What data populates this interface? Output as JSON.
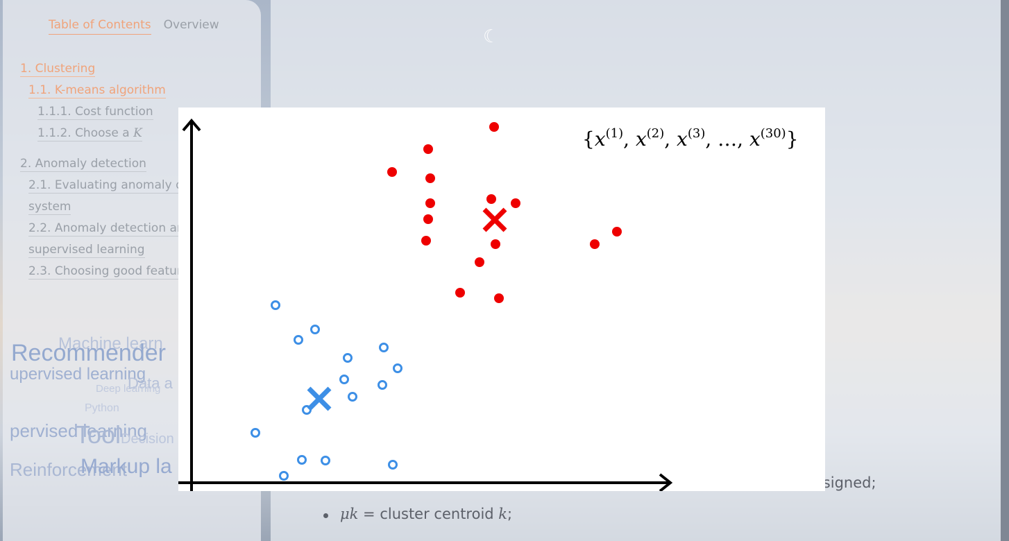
{
  "sidebar": {
    "tabs": [
      {
        "label": "Table of Contents",
        "active": true
      },
      {
        "label": "Overview",
        "active": false
      }
    ],
    "toc": [
      {
        "label": "1. Clustering",
        "level": 1,
        "active": true
      },
      {
        "label": "1.1. K-means algorithm",
        "level": 2,
        "active": true
      },
      {
        "label": "1.1.1. Cost function",
        "level": 3,
        "active": false
      },
      {
        "label": "1.1.2. Choose a ",
        "math": "K",
        "level": 3,
        "active": false
      },
      {
        "label": "2. Anomaly detection",
        "level": 1,
        "active": false
      },
      {
        "label": "2.1. Evaluating anomaly de",
        "cont": "system",
        "level": 2,
        "active": false
      },
      {
        "label": "2.2. Anomaly detection an",
        "cont": "supervised learning",
        "level": 2,
        "active": false
      },
      {
        "label": "2.3. Choosing good featur",
        "level": 2,
        "active": false
      }
    ],
    "word_cloud": [
      "Machine learn",
      "Recommender",
      "upervised learning",
      "Data a",
      "Deep learning",
      "Python",
      "pervised learning",
      "Tool",
      "Decision",
      "Reinforcement",
      "Markup la"
    ]
  },
  "figure": {
    "set_label": "{x(1), x(2), x(3), ..., x(30)}",
    "colors": {
      "red": "#ee0000",
      "blue": "#3d8fe6",
      "axis": "#000000"
    },
    "points": {
      "red": [
        [
          712,
          183
        ],
        [
          617,
          215
        ],
        [
          565,
          248
        ],
        [
          620,
          257
        ],
        [
          620,
          293
        ],
        [
          708,
          287
        ],
        [
          743,
          293
        ],
        [
          617,
          316
        ],
        [
          614,
          347
        ],
        [
          714,
          352
        ],
        [
          857,
          352
        ],
        [
          889,
          334
        ],
        [
          691,
          378
        ],
        [
          663,
          422
        ],
        [
          719,
          430
        ]
      ],
      "blue": [
        [
          397,
          440
        ],
        [
          454,
          475
        ],
        [
          430,
          490
        ],
        [
          553,
          501
        ],
        [
          501,
          516
        ],
        [
          573,
          531
        ],
        [
          496,
          547
        ],
        [
          551,
          555
        ],
        [
          508,
          572
        ],
        [
          442,
          591
        ],
        [
          368,
          624
        ],
        [
          435,
          663
        ],
        [
          469,
          664
        ],
        [
          566,
          670
        ],
        [
          409,
          686
        ]
      ]
    },
    "centroids": {
      "red": [
        713,
        317
      ],
      "blue": [
        460,
        575
      ]
    }
  },
  "main": {
    "bottom_text": {
      "line1_tail": "assigned;",
      "bullet2_math": "μk",
      "bullet2_text": " = cluster centroid ",
      "bullet2_k": "k",
      "bullet2_end": ";"
    }
  }
}
